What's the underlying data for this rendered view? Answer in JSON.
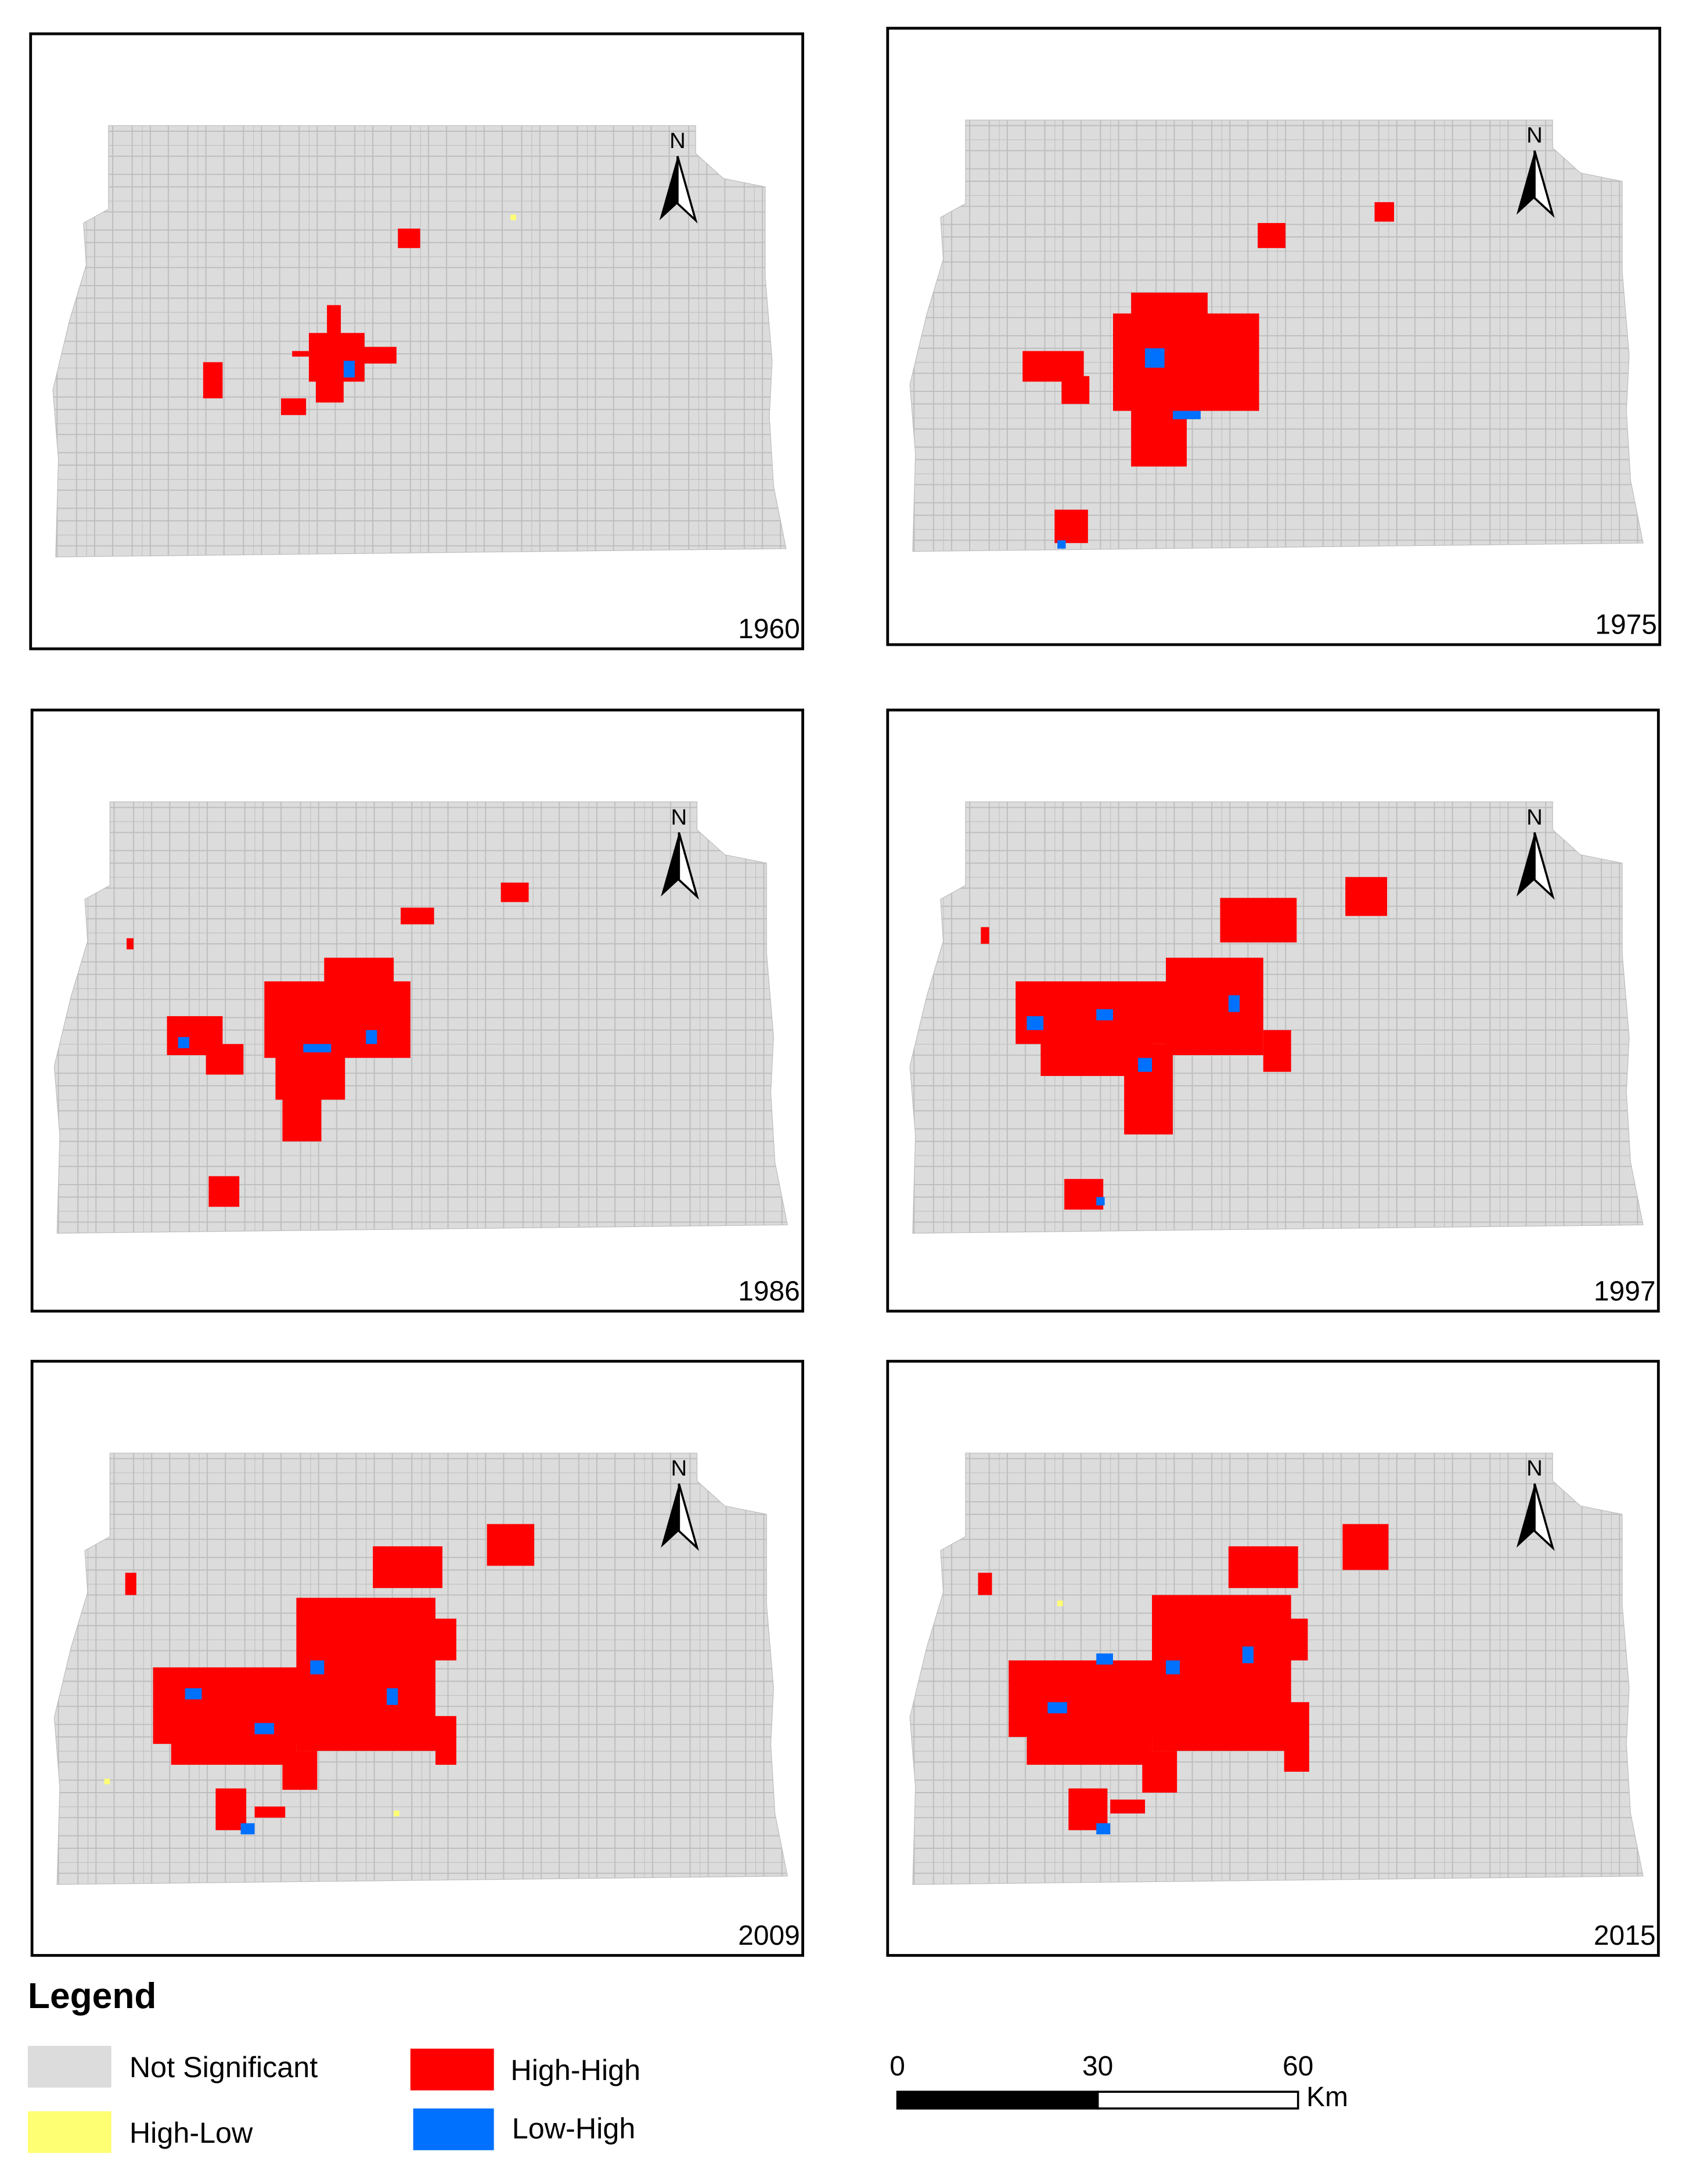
{
  "panels": [
    {
      "year": "1960"
    },
    {
      "year": "1975"
    },
    {
      "year": "1986"
    },
    {
      "year": "1997"
    },
    {
      "year": "2009"
    },
    {
      "year": "2015"
    }
  ],
  "north_label": "N",
  "legend": {
    "title": "Legend",
    "items": [
      {
        "label": "Not Significant",
        "color": "#dcdcdc"
      },
      {
        "label": "High-Low",
        "color": "#ffff73"
      },
      {
        "label": "High-High",
        "color": "#ff0000"
      },
      {
        "label": "Low-High",
        "color": "#0070ff"
      }
    ]
  },
  "scale_bar": {
    "ticks": [
      0,
      30,
      60
    ],
    "unit": "Km"
  }
}
